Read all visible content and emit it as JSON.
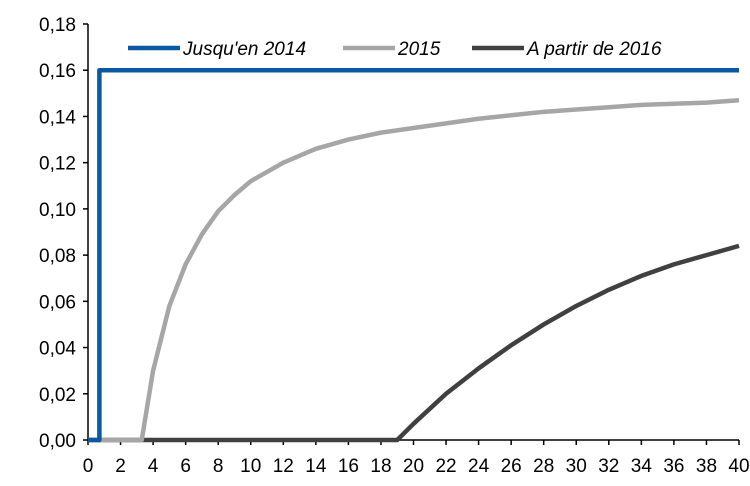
{
  "chart_data": {
    "type": "line",
    "title": "",
    "xlabel": "",
    "ylabel": "",
    "xlim": [
      0,
      40
    ],
    "ylim": [
      0,
      0.18
    ],
    "x_ticks": [
      "0",
      "2",
      "4",
      "6",
      "8",
      "10",
      "12",
      "14",
      "16",
      "18",
      "20",
      "22",
      "24",
      "26",
      "28",
      "30",
      "32",
      "34",
      "36",
      "38",
      "40"
    ],
    "y_ticks": [
      "0,00",
      "0,02",
      "0,04",
      "0,06",
      "0,08",
      "0,10",
      "0,12",
      "0,14",
      "0,16",
      "0,18"
    ],
    "grid": false,
    "legend_position": "top",
    "series": [
      {
        "name": "Jusqu'en 2014",
        "color": "#0a57a3",
        "points": [
          [
            0,
            0
          ],
          [
            0.7,
            0
          ],
          [
            0.7,
            0.16
          ],
          [
            40,
            0.16
          ]
        ]
      },
      {
        "name": "2015",
        "color": "#a6a6a6",
        "points": [
          [
            0,
            0
          ],
          [
            3.3,
            0
          ],
          [
            4,
            0.03
          ],
          [
            5,
            0.058
          ],
          [
            6,
            0.076
          ],
          [
            7,
            0.089
          ],
          [
            8,
            0.099
          ],
          [
            9,
            0.106
          ],
          [
            10,
            0.112
          ],
          [
            12,
            0.12
          ],
          [
            14,
            0.126
          ],
          [
            16,
            0.13
          ],
          [
            18,
            0.133
          ],
          [
            20,
            0.135
          ],
          [
            22,
            0.137
          ],
          [
            24,
            0.139
          ],
          [
            26,
            0.1405
          ],
          [
            28,
            0.142
          ],
          [
            30,
            0.143
          ],
          [
            32,
            0.144
          ],
          [
            34,
            0.145
          ],
          [
            36,
            0.1455
          ],
          [
            38,
            0.146
          ],
          [
            40,
            0.147
          ]
        ]
      },
      {
        "name": "A partir de 2016",
        "color": "#404040",
        "points": [
          [
            0,
            0
          ],
          [
            19,
            0
          ],
          [
            20,
            0.007
          ],
          [
            22,
            0.02
          ],
          [
            24,
            0.031
          ],
          [
            26,
            0.041
          ],
          [
            28,
            0.05
          ],
          [
            30,
            0.058
          ],
          [
            32,
            0.065
          ],
          [
            34,
            0.071
          ],
          [
            36,
            0.076
          ],
          [
            38,
            0.08
          ],
          [
            40,
            0.084
          ]
        ]
      }
    ]
  }
}
